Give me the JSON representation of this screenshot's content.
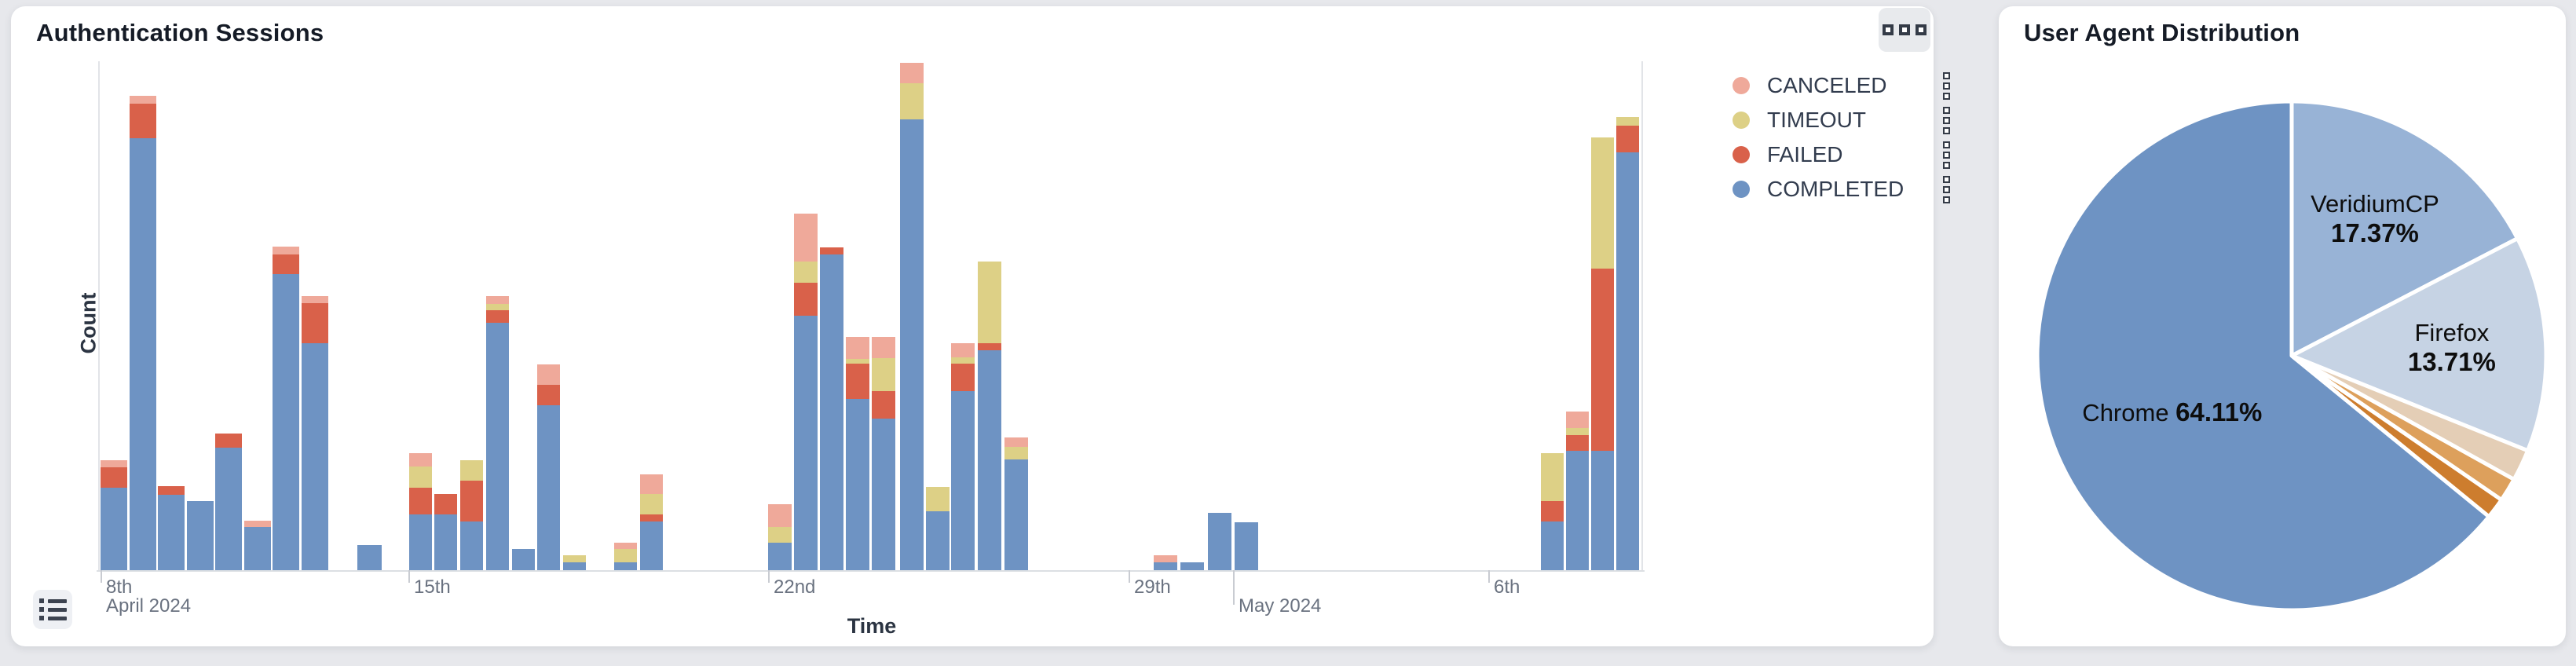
{
  "panels": {
    "auth_sessions": {
      "title": "Authentication Sessions",
      "toolbox_icon": "grid-menu-icon",
      "data_view_icon": "list-icon",
      "xlabel": "Time",
      "ylabel": "Count"
    },
    "user_agents": {
      "title": "User Agent Distribution"
    }
  },
  "chart_data": [
    {
      "type": "bar",
      "stacked": true,
      "title": "Authentication Sessions",
      "xlabel": "Time",
      "ylabel": "Count",
      "ylim": [
        0,
        660
      ],
      "grid": false,
      "legend_position": "outside-top-right",
      "legend": [
        {
          "label": "CANCELED",
          "color": "#efa99a"
        },
        {
          "label": "TIMEOUT",
          "color": "#ddd086"
        },
        {
          "label": "FAILED",
          "color": "#d9614a"
        },
        {
          "label": "COMPLETED",
          "color": "#6e93c3"
        }
      ],
      "x_axis": {
        "type": "time",
        "ticks": [
          {
            "x": 128,
            "label": "8th",
            "sub": "April 2024"
          },
          {
            "x": 520,
            "label": "15th"
          },
          {
            "x": 978,
            "label": "22nd"
          },
          {
            "x": 1437,
            "label": "29th"
          },
          {
            "x": 1570,
            "label": "May 2024",
            "row": 2
          },
          {
            "x": 1895,
            "label": "6th"
          }
        ]
      },
      "bars": [
        {
          "x": 128,
          "w": 34,
          "COMPLETED": 105,
          "FAILED": 26,
          "TIMEOUT": 0,
          "CANCELED": 9
        },
        {
          "x": 165,
          "w": 34,
          "COMPLETED": 550,
          "FAILED": 44,
          "TIMEOUT": 0,
          "CANCELED": 10
        },
        {
          "x": 201,
          "w": 34,
          "COMPLETED": 96,
          "FAILED": 11,
          "TIMEOUT": 0,
          "CANCELED": 0
        },
        {
          "x": 238,
          "w": 34,
          "COMPLETED": 88,
          "FAILED": 0,
          "TIMEOUT": 0,
          "CANCELED": 0
        },
        {
          "x": 274,
          "w": 34,
          "COMPLETED": 156,
          "FAILED": 18,
          "TIMEOUT": 0,
          "CANCELED": 0
        },
        {
          "x": 311,
          "w": 34,
          "COMPLETED": 55,
          "FAILED": 0,
          "TIMEOUT": 0,
          "CANCELED": 8
        },
        {
          "x": 347,
          "w": 34,
          "COMPLETED": 377,
          "FAILED": 25,
          "TIMEOUT": 0,
          "CANCELED": 10
        },
        {
          "x": 384,
          "w": 34,
          "COMPLETED": 289,
          "FAILED": 51,
          "TIMEOUT": 0,
          "CANCELED": 9
        },
        {
          "x": 455,
          "w": 31,
          "COMPLETED": 32,
          "FAILED": 0,
          "TIMEOUT": 0,
          "CANCELED": 0
        },
        {
          "x": 521,
          "w": 29,
          "COMPLETED": 71,
          "FAILED": 34,
          "TIMEOUT": 27,
          "CANCELED": 17
        },
        {
          "x": 553,
          "w": 29,
          "COMPLETED": 71,
          "FAILED": 26,
          "TIMEOUT": 0,
          "CANCELED": 0
        },
        {
          "x": 586,
          "w": 29,
          "COMPLETED": 62,
          "FAILED": 52,
          "TIMEOUT": 26,
          "CANCELED": 0
        },
        {
          "x": 619,
          "w": 29,
          "COMPLETED": 315,
          "FAILED": 16,
          "TIMEOUT": 8,
          "CANCELED": 10
        },
        {
          "x": 652,
          "w": 29,
          "COMPLETED": 27,
          "FAILED": 0,
          "TIMEOUT": 0,
          "CANCELED": 0
        },
        {
          "x": 684,
          "w": 29,
          "COMPLETED": 210,
          "FAILED": 26,
          "TIMEOUT": 0,
          "CANCELED": 26
        },
        {
          "x": 717,
          "w": 29,
          "COMPLETED": 10,
          "FAILED": 0,
          "TIMEOUT": 9,
          "CANCELED": 0
        },
        {
          "x": 782,
          "w": 29,
          "COMPLETED": 10,
          "FAILED": 0,
          "TIMEOUT": 17,
          "CANCELED": 8
        },
        {
          "x": 815,
          "w": 29,
          "COMPLETED": 62,
          "FAILED": 9,
          "TIMEOUT": 26,
          "CANCELED": 25
        },
        {
          "x": 978,
          "w": 30,
          "COMPLETED": 35,
          "FAILED": 0,
          "TIMEOUT": 20,
          "CANCELED": 29
        },
        {
          "x": 1011,
          "w": 30,
          "COMPLETED": 324,
          "FAILED": 42,
          "TIMEOUT": 27,
          "CANCELED": 61
        },
        {
          "x": 1044,
          "w": 30,
          "COMPLETED": 402,
          "FAILED": 9,
          "TIMEOUT": 0,
          "CANCELED": 0
        },
        {
          "x": 1077,
          "w": 30,
          "COMPLETED": 218,
          "FAILED": 45,
          "TIMEOUT": 6,
          "CANCELED": 28
        },
        {
          "x": 1110,
          "w": 30,
          "COMPLETED": 193,
          "FAILED": 35,
          "TIMEOUT": 42,
          "CANCELED": 27
        },
        {
          "x": 1146,
          "w": 30,
          "COMPLETED": 574,
          "FAILED": 0,
          "TIMEOUT": 46,
          "CANCELED": 26
        },
        {
          "x": 1179,
          "w": 30,
          "COMPLETED": 75,
          "FAILED": 0,
          "TIMEOUT": 31,
          "CANCELED": 0
        },
        {
          "x": 1211,
          "w": 30,
          "COMPLETED": 228,
          "FAILED": 35,
          "TIMEOUT": 8,
          "CANCELED": 18
        },
        {
          "x": 1245,
          "w": 30,
          "COMPLETED": 280,
          "FAILED": 9,
          "TIMEOUT": 104,
          "CANCELED": 0
        },
        {
          "x": 1279,
          "w": 30,
          "COMPLETED": 141,
          "FAILED": 0,
          "TIMEOUT": 16,
          "CANCELED": 12
        },
        {
          "x": 1469,
          "w": 30,
          "COMPLETED": 10,
          "FAILED": 0,
          "TIMEOUT": 0,
          "CANCELED": 9
        },
        {
          "x": 1503,
          "w": 30,
          "COMPLETED": 10,
          "FAILED": 0,
          "TIMEOUT": 0,
          "CANCELED": 0
        },
        {
          "x": 1538,
          "w": 30,
          "COMPLETED": 73,
          "FAILED": 0,
          "TIMEOUT": 0,
          "CANCELED": 0
        },
        {
          "x": 1572,
          "w": 30,
          "COMPLETED": 61,
          "FAILED": 0,
          "TIMEOUT": 0,
          "CANCELED": 0
        },
        {
          "x": 1962,
          "w": 29,
          "COMPLETED": 62,
          "FAILED": 26,
          "TIMEOUT": 61,
          "CANCELED": 0
        },
        {
          "x": 1994,
          "w": 29,
          "COMPLETED": 152,
          "FAILED": 20,
          "TIMEOUT": 9,
          "CANCELED": 21
        },
        {
          "x": 2026,
          "w": 29,
          "COMPLETED": 152,
          "FAILED": 232,
          "TIMEOUT": 167,
          "CANCELED": 0
        },
        {
          "x": 2058,
          "w": 29,
          "COMPLETED": 532,
          "FAILED": 34,
          "TIMEOUT": 11,
          "CANCELED": 0
        }
      ]
    },
    {
      "type": "pie",
      "title": "User Agent Distribution",
      "start_angle_deg": 0,
      "direction": "clockwise",
      "label_color": "#0d0d0d",
      "slices": [
        {
          "label": "VeridiumCP",
          "value_pct": 17.37,
          "color": "#98b3d6"
        },
        {
          "label": "Firefox",
          "value_pct": 13.71,
          "color": "#c6d3e4"
        },
        {
          "label": "",
          "value_pct": 2.0,
          "color": "#e4ceb6"
        },
        {
          "label": "",
          "value_pct": 1.5,
          "color": "#dda05c"
        },
        {
          "label": "",
          "value_pct": 1.31,
          "color": "#cd7d2e"
        },
        {
          "label": "Chrome",
          "value_pct": 64.11,
          "color": "#6e93c3",
          "inline_label": true
        }
      ]
    }
  ]
}
